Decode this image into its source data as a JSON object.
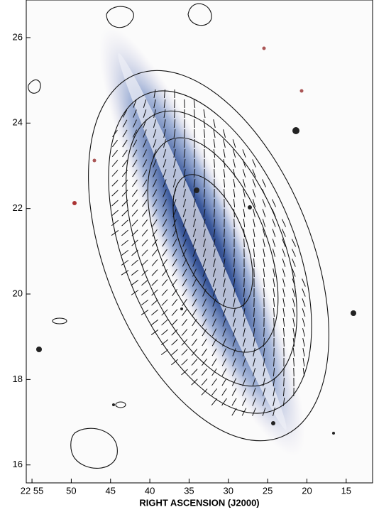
{
  "chart_data": {
    "type": "image",
    "xlabel": "RIGHT ASCENSION (J2000)",
    "xlim": [
      55.73,
      11.64
    ],
    "xticks": [
      {
        "value": 55,
        "label": "22 55"
      },
      50,
      45,
      40,
      35,
      30,
      25,
      20,
      15
    ],
    "ylim": [
      15.58,
      26.88
    ],
    "yticks": [
      16,
      18,
      20,
      22,
      24,
      26
    ]
  }
}
